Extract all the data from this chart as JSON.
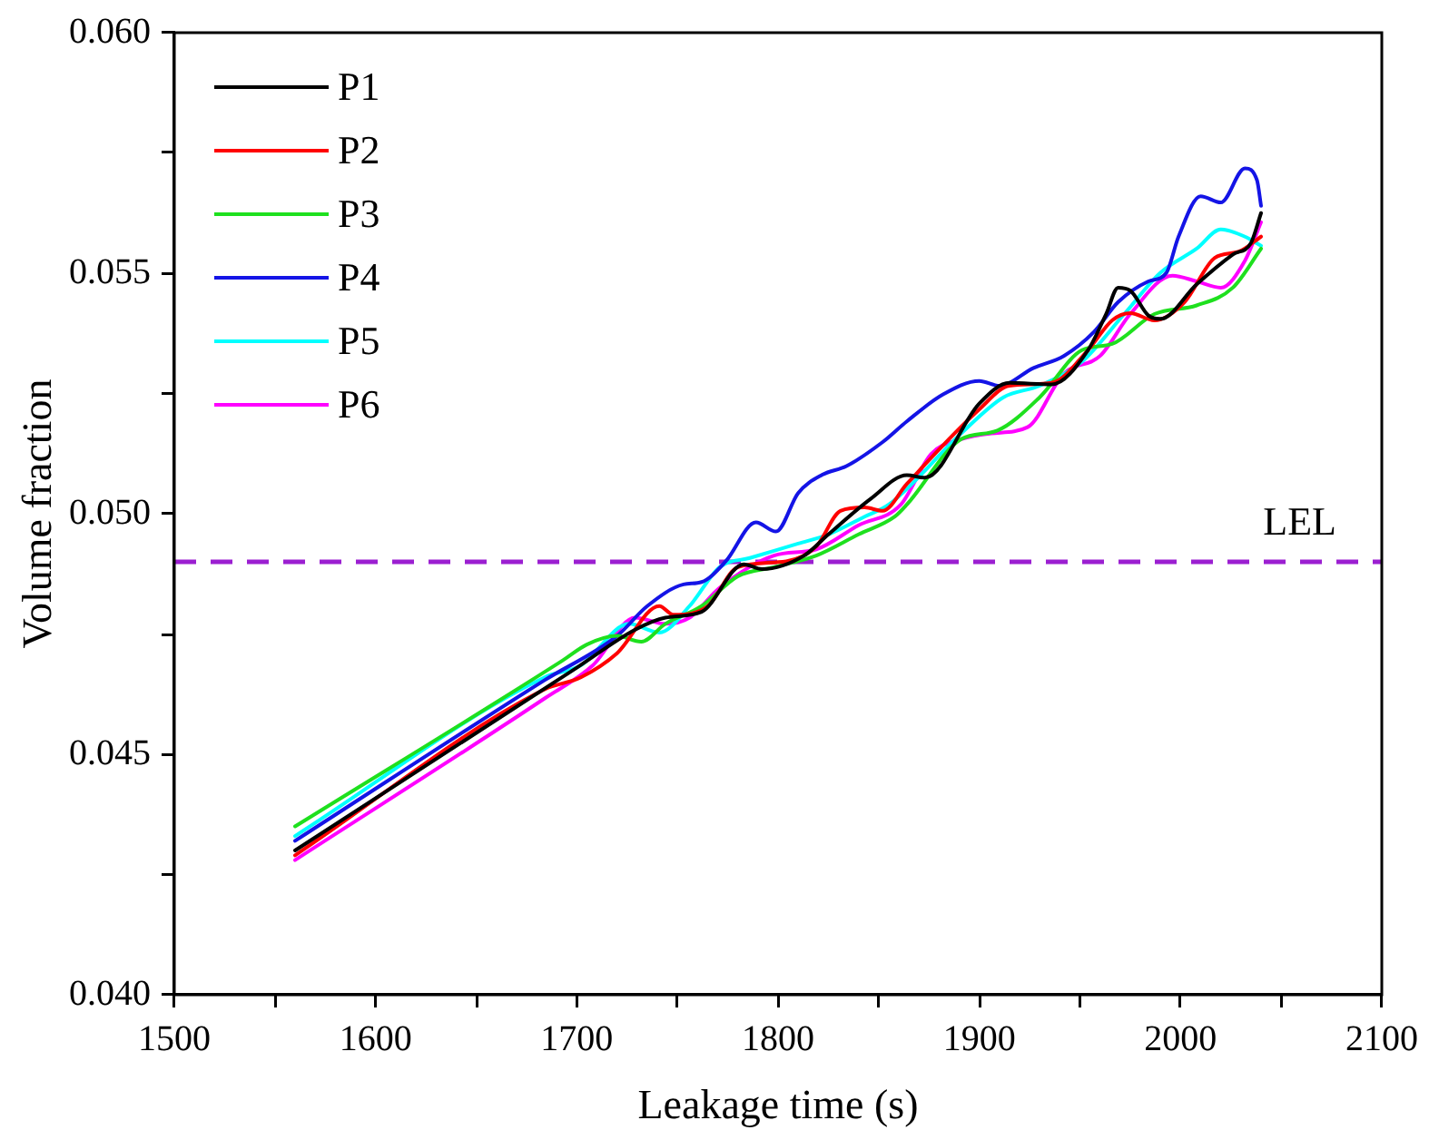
{
  "chart_data": {
    "type": "line",
    "xlabel": "Leakage time (s)",
    "ylabel": "Volume fraction",
    "xlim": [
      1500,
      2100
    ],
    "ylim": [
      0.04,
      0.06
    ],
    "xticks": [
      1500,
      {
        "value": 1550,
        "label": null
      },
      1600,
      {
        "value": 1650,
        "label": null
      },
      1700,
      {
        "value": 1750,
        "label": null
      },
      1800,
      {
        "value": 1850,
        "label": null
      },
      1900,
      {
        "value": 1950,
        "label": null
      },
      2000,
      {
        "value": 2050,
        "label": null
      },
      2100
    ],
    "yticks": [
      {
        "value": 0.04,
        "label": "0.040"
      },
      {
        "value": 0.0425,
        "label": null
      },
      {
        "value": 0.045,
        "label": "0.045"
      },
      {
        "value": 0.0475,
        "label": null
      },
      {
        "value": 0.05,
        "label": "0.050"
      },
      {
        "value": 0.0525,
        "label": null
      },
      {
        "value": 0.055,
        "label": "0.055"
      },
      {
        "value": 0.0575,
        "label": null
      },
      {
        "value": 0.06,
        "label": "0.060"
      }
    ],
    "grid": false,
    "legend": "top left",
    "marker": "none",
    "line_style": "solid",
    "ref_lines": [
      {
        "axis": "y",
        "value": 0.049,
        "label": "LEL",
        "color": "#9b1fd1",
        "line_style": "dashed"
      }
    ],
    "series": [
      {
        "name": "P1",
        "color": "#000000",
        "x": [
          1560,
          1700,
          1729,
          1744,
          1762,
          1783,
          1792,
          1813,
          1825,
          1846,
          1864,
          1873,
          1900,
          1915,
          1936,
          1954,
          1963,
          1969,
          1975,
          1984,
          1990,
          2008,
          2026,
          2035,
          2040
        ],
        "values": [
          0.043,
          0.0468,
          0.04759,
          0.04784,
          0.04796,
          0.04895,
          0.04885,
          0.04913,
          0.04957,
          0.05031,
          0.0508,
          0.05075,
          0.05229,
          0.05272,
          0.05269,
          0.0534,
          0.05415,
          0.0547,
          0.05464,
          0.05412,
          0.05405,
          0.05477,
          0.05539,
          0.05563,
          0.05625
        ]
      },
      {
        "name": "P2",
        "color": "#ff0000",
        "x": [
          1560,
          1684,
          1702,
          1720,
          1741,
          1748,
          1765,
          1780,
          1804,
          1819,
          1831,
          1843,
          1852,
          1864,
          1900,
          1915,
          1936,
          1954,
          1966,
          1975,
          1987,
          2002,
          2017,
          2029,
          2040
        ],
        "values": [
          0.0429,
          0.04635,
          0.0466,
          0.0471,
          0.04808,
          0.0479,
          0.04808,
          0.04889,
          0.04901,
          0.04932,
          0.05006,
          0.05013,
          0.05006,
          0.05062,
          0.05217,
          0.05266,
          0.05272,
          0.0534,
          0.05402,
          0.05417,
          0.05402,
          0.0544,
          0.05532,
          0.05545,
          0.05576
        ]
      },
      {
        "name": "P3",
        "color": "#1ee01e",
        "x": [
          1560,
          1693,
          1705,
          1720,
          1732,
          1744,
          1762,
          1780,
          1798,
          1819,
          1840,
          1858,
          1864,
          1891,
          1909,
          1930,
          1951,
          1966,
          1987,
          2008,
          2026,
          2040
        ],
        "values": [
          0.0435,
          0.04695,
          0.04728,
          0.04746,
          0.04734,
          0.04771,
          0.04808,
          0.0487,
          0.04889,
          0.04913,
          0.04957,
          0.04994,
          0.05019,
          0.05155,
          0.05173,
          0.05242,
          0.0534,
          0.05353,
          0.05415,
          0.05433,
          0.0547,
          0.05551
        ]
      },
      {
        "name": "P4",
        "color": "#1414e6",
        "x": [
          1560,
          1684,
          1720,
          1735,
          1753,
          1762,
          1774,
          1789,
          1799,
          1810,
          1822,
          1834,
          1852,
          1864,
          1882,
          1900,
          1910,
          1927,
          1942,
          1957,
          1969,
          1984,
          1993,
          1999,
          2010,
          2020,
          2032,
          2038,
          2040
        ],
        "values": [
          0.0432,
          0.04654,
          0.04746,
          0.04808,
          0.04853,
          0.04858,
          0.04901,
          0.04982,
          0.04963,
          0.05043,
          0.05081,
          0.05099,
          0.05149,
          0.05192,
          0.05248,
          0.05276,
          0.05266,
          0.05303,
          0.05328,
          0.05378,
          0.0544,
          0.05483,
          0.05501,
          0.05576,
          0.0566,
          0.05647,
          0.05718,
          0.05693,
          0.0564
        ]
      },
      {
        "name": "P5",
        "color": "#00ffff",
        "x": [
          1560,
          1684,
          1702,
          1726,
          1741,
          1756,
          1771,
          1786,
          1810,
          1825,
          1843,
          1855,
          1891,
          1912,
          1930,
          1951,
          1972,
          1990,
          2008,
          2020,
          2032,
          2040
        ],
        "values": [
          0.0433,
          0.0466,
          0.04685,
          0.04771,
          0.04753,
          0.04808,
          0.04889,
          0.04908,
          0.04938,
          0.04957,
          0.04994,
          0.05019,
          0.05167,
          0.05242,
          0.05266,
          0.05316,
          0.05415,
          0.05501,
          0.05551,
          0.05591,
          0.05576,
          0.05557
        ]
      },
      {
        "name": "P6",
        "color": "#ff00ff",
        "x": [
          1560,
          1684,
          1708,
          1729,
          1744,
          1756,
          1771,
          1798,
          1819,
          1840,
          1861,
          1876,
          1891,
          1906,
          1924,
          1942,
          1960,
          1975,
          1996,
          2008,
          2020,
          2032,
          2040
        ],
        "values": [
          0.0428,
          0.04616,
          0.04685,
          0.04784,
          0.04771,
          0.04784,
          0.04846,
          0.04913,
          0.04926,
          0.04976,
          0.05019,
          0.05124,
          0.05155,
          0.05167,
          0.0518,
          0.05291,
          0.05328,
          0.05415,
          0.05495,
          0.05483,
          0.0547,
          0.05526,
          0.05606
        ]
      }
    ]
  }
}
